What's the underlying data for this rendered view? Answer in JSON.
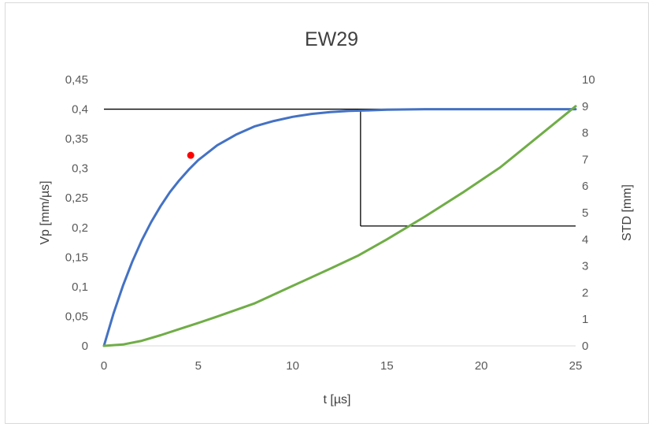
{
  "chart_data": {
    "type": "line",
    "title": "EW29",
    "xlabel": "t [µs]",
    "ylabel": "Vp [mm/µs]",
    "y2label": "STD [mm]",
    "xlim": [
      0,
      25
    ],
    "ylim": [
      0,
      0.45
    ],
    "y2lim": [
      0,
      10
    ],
    "x_ticks": [
      {
        "value": 0,
        "label": "0"
      },
      {
        "value": 5,
        "label": "5"
      },
      {
        "value": 10,
        "label": "10"
      },
      {
        "value": 15,
        "label": "15"
      },
      {
        "value": 20,
        "label": "20"
      },
      {
        "value": 25,
        "label": "25"
      }
    ],
    "y_ticks": [
      {
        "value": 0,
        "label": "0"
      },
      {
        "value": 0.05,
        "label": "0,05"
      },
      {
        "value": 0.1,
        "label": "0,1"
      },
      {
        "value": 0.15,
        "label": "0,15"
      },
      {
        "value": 0.2,
        "label": "0,2"
      },
      {
        "value": 0.25,
        "label": "0,25"
      },
      {
        "value": 0.3,
        "label": "0,3"
      },
      {
        "value": 0.35,
        "label": "0,35"
      },
      {
        "value": 0.4,
        "label": "0,4"
      },
      {
        "value": 0.45,
        "label": "0,45"
      }
    ],
    "y2_ticks": [
      {
        "value": 0,
        "label": "0"
      },
      {
        "value": 1,
        "label": "1"
      },
      {
        "value": 2,
        "label": "2"
      },
      {
        "value": 3,
        "label": "3"
      },
      {
        "value": 4,
        "label": "4"
      },
      {
        "value": 5,
        "label": "5"
      },
      {
        "value": 6,
        "label": "6"
      },
      {
        "value": 7,
        "label": "7"
      },
      {
        "value": 8,
        "label": "8"
      },
      {
        "value": 9,
        "label": "9"
      },
      {
        "value": 10,
        "label": "10"
      }
    ],
    "grid": false,
    "series": [
      {
        "axis": "left",
        "color": "#4472c4",
        "points": [
          [
            0,
            0
          ],
          [
            0.5,
            0.054
          ],
          [
            1,
            0.101
          ],
          [
            1.5,
            0.142
          ],
          [
            2,
            0.178
          ],
          [
            2.5,
            0.209
          ],
          [
            3,
            0.236
          ],
          [
            3.5,
            0.26
          ],
          [
            4,
            0.28
          ],
          [
            4.5,
            0.298
          ],
          [
            5,
            0.314
          ],
          [
            6,
            0.339
          ],
          [
            7,
            0.357
          ],
          [
            8,
            0.371
          ],
          [
            9,
            0.38
          ],
          [
            10,
            0.387
          ],
          [
            11,
            0.392
          ],
          [
            12,
            0.395
          ],
          [
            13,
            0.397
          ],
          [
            14,
            0.398
          ],
          [
            15,
            0.399
          ],
          [
            17,
            0.4
          ],
          [
            20,
            0.4
          ],
          [
            25,
            0.4
          ]
        ]
      },
      {
        "axis": "right",
        "color": "#70ad47",
        "points": [
          [
            0,
            0
          ],
          [
            1,
            0.05
          ],
          [
            2,
            0.19
          ],
          [
            3,
            0.4
          ],
          [
            4,
            0.63
          ],
          [
            5,
            0.86
          ],
          [
            6,
            1.1
          ],
          [
            8,
            1.6
          ],
          [
            10,
            2.25
          ],
          [
            12,
            2.9
          ],
          [
            13.5,
            3.4
          ],
          [
            15,
            4.0
          ],
          [
            17,
            4.85
          ],
          [
            19,
            5.75
          ],
          [
            21,
            6.7
          ],
          [
            23,
            7.85
          ],
          [
            25,
            9.0
          ]
        ]
      }
    ],
    "marker": {
      "x": 4.6,
      "y": 0.322,
      "color": "#ff0000"
    },
    "reference_lines": {
      "color": "#000000",
      "y_level": 0.4,
      "x_at": 13.6,
      "y2_level": 4.5
    }
  }
}
